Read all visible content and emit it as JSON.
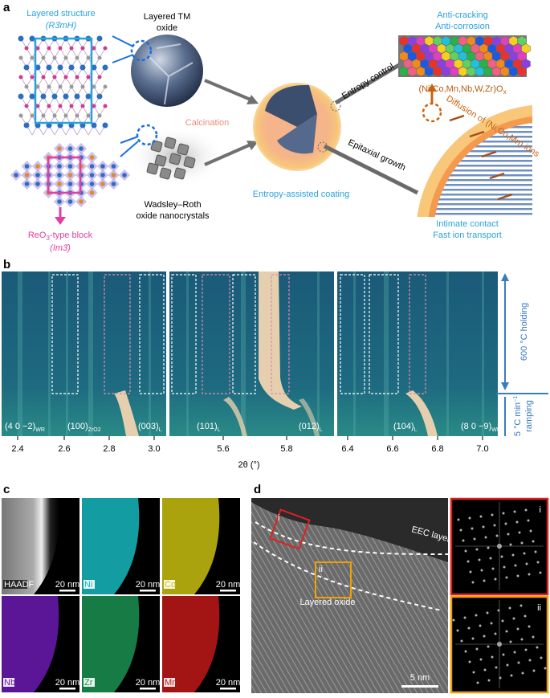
{
  "panel_a": {
    "label": "a",
    "layered_structure": "Layered structure",
    "layered_group": "(R3̄mH)",
    "layered_tm_oxide": [
      "Layered TM",
      "oxide"
    ],
    "calcination": "Calcination",
    "wadsley_roth": [
      "Wadsley–Roth",
      "oxide nanocrystals"
    ],
    "reo3_block": {
      "pre": "ReO",
      "sub": "3",
      "post": "-type block"
    },
    "reo3_group": "(Im3̄)",
    "entropy_control": "Entropy control",
    "epitaxial_growth": "Epitaxial growth",
    "coating": "Entropy-assisted coating",
    "anti": [
      "Anti-cracking",
      "Anti-corrosion"
    ],
    "formula": {
      "main": "(Ni,Co,Mn,Nb,W,Zr)O",
      "sub": "x"
    },
    "diffusion": "Diffusion of (Ni,Co,Mn) ions",
    "contact": [
      "Intimate contact",
      "Fast ion transport"
    ]
  },
  "panel_b": {
    "label": "b",
    "peaks": [
      {
        "main": "(4 0 −2)",
        "sub": "WR"
      },
      {
        "main": "(100)",
        "sub": "ZrO2"
      },
      {
        "main": "(003)",
        "sub": "L"
      },
      {
        "main": "(101)",
        "sub": "L"
      },
      {
        "main": "(012)",
        "sub": "L"
      },
      {
        "main": "(104)",
        "sub": "L"
      },
      {
        "main": "(8 0 −9)",
        "sub": "WR"
      }
    ],
    "xticks": [
      "2.4",
      "2.6",
      "2.8",
      "3.0",
      "5.6",
      "5.8",
      "6.4",
      "6.6",
      "6.8",
      "7.0"
    ],
    "xlabel": "2θ (°)",
    "holding": "600 °C holding",
    "ramping": {
      "top": "5 °C min",
      "sup": "−1",
      "bottom": "ramping"
    }
  },
  "panel_c": {
    "label": "c",
    "maps": [
      {
        "element": "HAADF",
        "scale": "20 nm"
      },
      {
        "element": "Ni",
        "scale": "20 nm"
      },
      {
        "element": "Co",
        "scale": "20 nm"
      },
      {
        "element": "Nb",
        "scale": "20 nm"
      },
      {
        "element": "Zr",
        "scale": "20 nm"
      },
      {
        "element": "Mn",
        "scale": "20 nm"
      }
    ]
  },
  "panel_d": {
    "label": "d",
    "eec_layer": "EEC layer",
    "layered_oxide": "Layered oxide",
    "scale": "5 nm",
    "box_labels": [
      "i",
      "ii"
    ],
    "inset_labels": [
      "i",
      "ii"
    ]
  }
}
